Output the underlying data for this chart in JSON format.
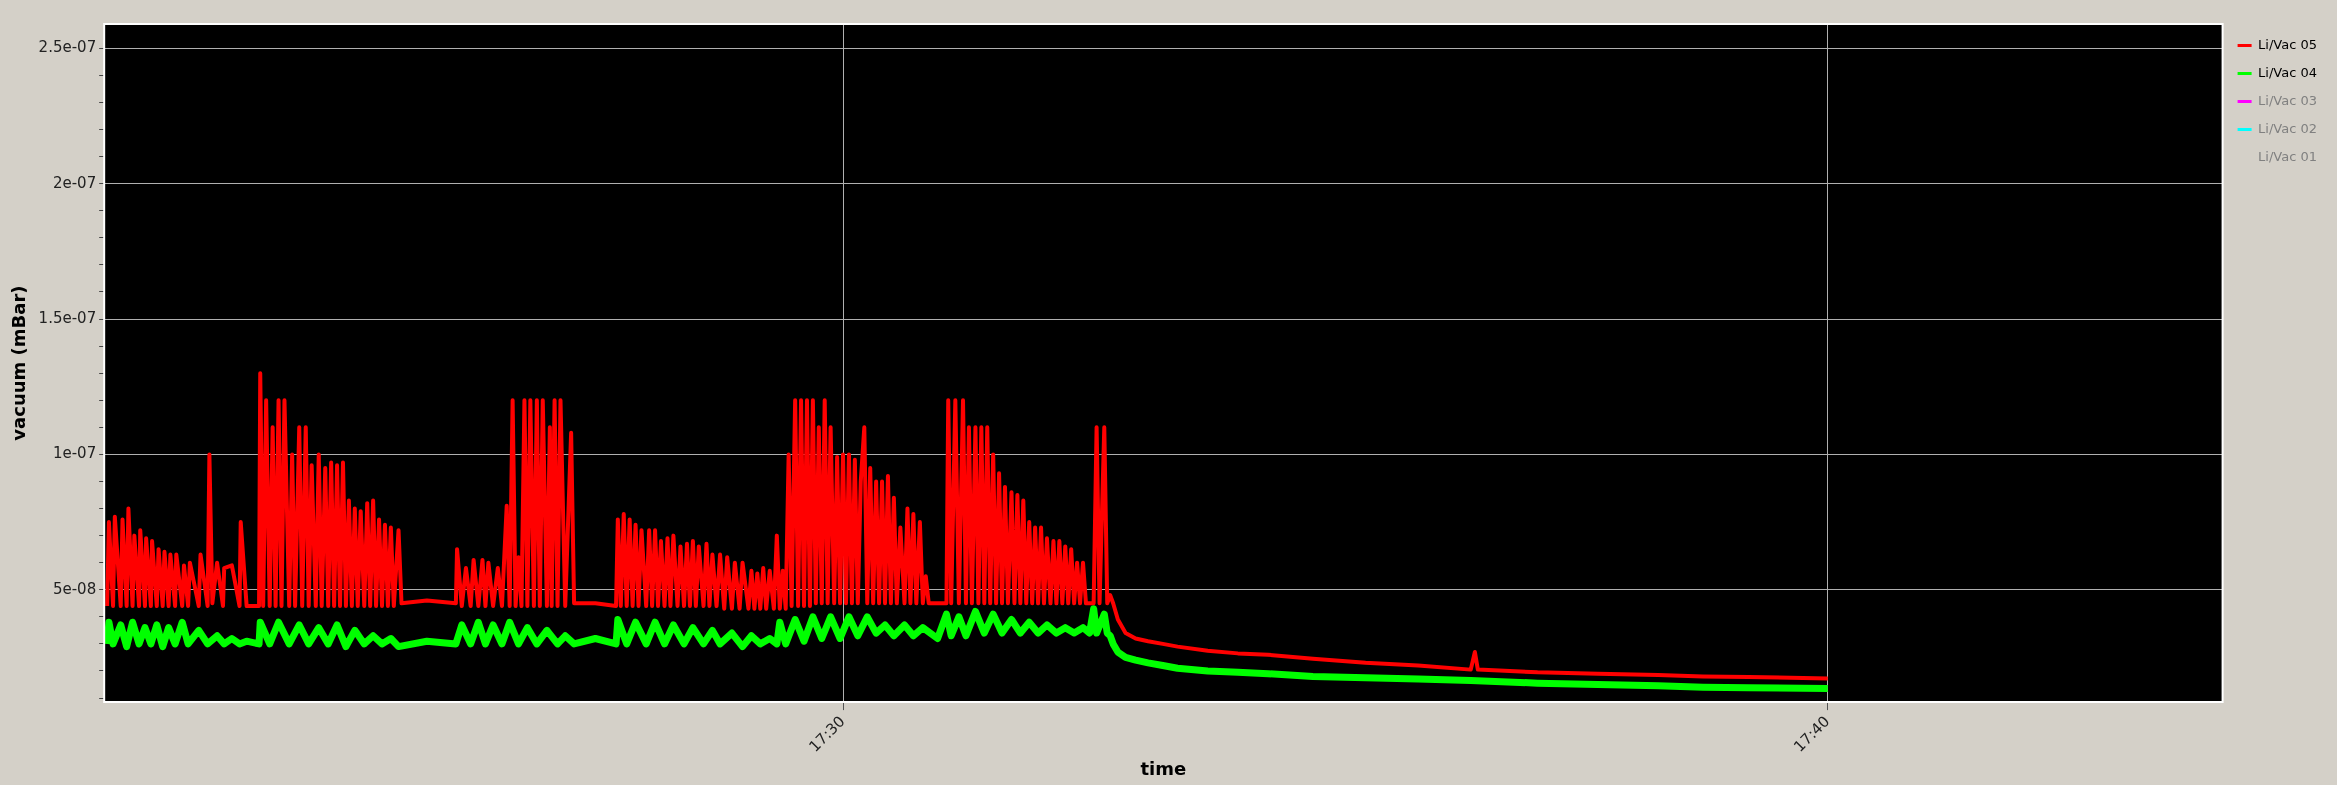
{
  "chart_data": {
    "type": "line",
    "xlabel": "time",
    "ylabel": "vacuum (mBar)",
    "xlim": [
      17.375,
      17.7334
    ],
    "xticks": [
      {
        "value": 17.5,
        "label": "17:30"
      },
      {
        "value": 17.6666,
        "label": "17:40"
      }
    ],
    "ylim": [
      8.5e-09,
      2.59e-07
    ],
    "yticks": [
      {
        "value": 1e-08,
        "label": null
      },
      {
        "value": 2e-08,
        "label": null
      },
      {
        "value": 3e-08,
        "label": null
      },
      {
        "value": 4e-08,
        "label": null
      },
      {
        "value": 5e-08,
        "label": "5e-08"
      },
      {
        "value": 6e-08,
        "label": null
      },
      {
        "value": 7e-08,
        "label": null
      },
      {
        "value": 8e-08,
        "label": null
      },
      {
        "value": 9e-08,
        "label": null
      },
      {
        "value": 1e-07,
        "label": "1e-07"
      },
      {
        "value": 1.1e-07,
        "label": null
      },
      {
        "value": 1.2e-07,
        "label": null
      },
      {
        "value": 1.3e-07,
        "label": null
      },
      {
        "value": 1.4e-07,
        "label": null
      },
      {
        "value": 1.5e-07,
        "label": "1.5e-07"
      },
      {
        "value": 1.6e-07,
        "label": null
      },
      {
        "value": 1.7e-07,
        "label": null
      },
      {
        "value": 1.8e-07,
        "label": null
      },
      {
        "value": 1.9e-07,
        "label": null
      },
      {
        "value": 2e-07,
        "label": "2e-07"
      },
      {
        "value": 2.1e-07,
        "label": null
      },
      {
        "value": 2.2e-07,
        "label": null
      },
      {
        "value": 2.3e-07,
        "label": null
      },
      {
        "value": 2.4e-07,
        "label": null
      },
      {
        "value": 2.5e-07,
        "label": "2.5e-07"
      }
    ],
    "grid": true,
    "legend": "right",
    "marker": "none",
    "line_style": "solid",
    "series": [
      {
        "name": "Li/Vac 05",
        "color": "#ff0000",
        "x": [
          17.3755,
          17.3758,
          17.3765,
          17.3768,
          17.3778,
          17.3781,
          17.3788,
          17.3791,
          17.3798,
          17.3801,
          17.3809,
          17.3811,
          17.3819,
          17.3821,
          17.3829,
          17.3831,
          17.3839,
          17.3842,
          17.3849,
          17.3852,
          17.3859,
          17.3862,
          17.387,
          17.3872,
          17.3882,
          17.3885,
          17.3892,
          17.3895,
          17.391,
          17.3913,
          17.3925,
          17.3928,
          17.3933,
          17.3941,
          17.3951,
          17.3953,
          17.3966,
          17.3979,
          17.3981,
          17.3991,
          17.4012,
          17.4014,
          17.4019,
          17.4024,
          17.403,
          17.4035,
          17.404,
          17.4045,
          17.405,
          17.4055,
          17.4063,
          17.4068,
          17.4073,
          17.408,
          17.4085,
          17.4091,
          17.4096,
          17.4101,
          17.4108,
          17.4113,
          17.4118,
          17.4124,
          17.4129,
          17.4134,
          17.4139,
          17.4144,
          17.4149,
          17.4154,
          17.4159,
          17.4164,
          17.4169,
          17.4174,
          17.4179,
          17.4184,
          17.419,
          17.4195,
          17.42,
          17.4205,
          17.421,
          17.4215,
          17.422,
          17.4225,
          17.423,
          17.4235,
          17.424,
          17.4248,
          17.4253,
          17.4296,
          17.4345,
          17.4347,
          17.4355,
          17.4362,
          17.437,
          17.4375,
          17.4383,
          17.439,
          17.4395,
          17.44,
          17.4408,
          17.4416,
          17.4423,
          17.4431,
          17.4436,
          17.4441,
          17.4446,
          17.4451,
          17.4456,
          17.4461,
          17.4466,
          17.4471,
          17.4477,
          17.4482,
          17.4487,
          17.4492,
          17.4499,
          17.4504,
          17.4507,
          17.4512,
          17.4517,
          17.4522,
          17.453,
          17.454,
          17.4545,
          17.4581,
          17.4616,
          17.4619,
          17.4624,
          17.4629,
          17.4634,
          17.4639,
          17.4644,
          17.4649,
          17.4654,
          17.4659,
          17.4667,
          17.4672,
          17.4677,
          17.4682,
          17.4687,
          17.4692,
          17.4698,
          17.4703,
          17.4708,
          17.4713,
          17.472,
          17.4725,
          17.4731,
          17.4736,
          17.4741,
          17.4746,
          17.4751,
          17.4756,
          17.4764,
          17.4769,
          17.4774,
          17.4779,
          17.4786,
          17.4792,
          17.4799,
          17.4804,
          17.4812,
          17.4817,
          17.4825,
          17.483,
          17.484,
          17.4845,
          17.485,
          17.4855,
          17.486,
          17.4865,
          17.487,
          17.4876,
          17.4883,
          17.4888,
          17.4893,
          17.4898,
          17.4903,
          17.4908,
          17.4913,
          17.4919,
          17.4924,
          17.4929,
          17.4934,
          17.4939,
          17.4944,
          17.4949,
          17.4954,
          17.4959,
          17.4964,
          17.4969,
          17.4974,
          17.4979,
          17.4985,
          17.499,
          17.4995,
          17.5,
          17.5005,
          17.501,
          17.5015,
          17.502,
          17.5025,
          17.503,
          17.5036,
          17.5041,
          17.5046,
          17.5051,
          17.5056,
          17.5061,
          17.5066,
          17.5071,
          17.5076,
          17.5081,
          17.5086,
          17.5091,
          17.5097,
          17.5104,
          17.5109,
          17.5114,
          17.5119,
          17.5124,
          17.513,
          17.5135,
          17.514,
          17.5145,
          17.516,
          17.5175,
          17.5178,
          17.5183,
          17.519,
          17.5196,
          17.5203,
          17.5208,
          17.5213,
          17.5218,
          17.5224,
          17.5229,
          17.5234,
          17.5239,
          17.5244,
          17.5249,
          17.5254,
          17.5259,
          17.5264,
          17.5269,
          17.5274,
          17.5279,
          17.5285,
          17.529,
          17.5295,
          17.53,
          17.5305,
          17.531,
          17.5315,
          17.532,
          17.5325,
          17.533,
          17.5335,
          17.534,
          17.5345,
          17.5351,
          17.5356,
          17.5361,
          17.5366,
          17.5371,
          17.5376,
          17.5381,
          17.5386,
          17.5391,
          17.5396,
          17.5401,
          17.5406,
          17.5411,
          17.5424,
          17.5429,
          17.5434,
          17.5442,
          17.5447,
          17.5452,
          17.5457,
          17.5465,
          17.5478,
          17.5495,
          17.5516,
          17.5541,
          17.5566,
          17.5617,
          17.5668,
          17.5719,
          17.5795,
          17.5884,
          17.5973,
          17.6062,
          17.6069,
          17.6074,
          17.6175,
          17.6277,
          17.6379,
          17.6455,
          17.6532,
          17.6666
        ],
        "values": [
          4.4e-08,
          7.5e-08,
          4.4e-08,
          7.7e-08,
          4.4e-08,
          7.6e-08,
          4.4e-08,
          8e-08,
          4.4e-08,
          7e-08,
          4.4e-08,
          7.2e-08,
          4.4e-08,
          6.9e-08,
          4.4e-08,
          6.8e-08,
          4.4e-08,
          6.5e-08,
          4.4e-08,
          6.4e-08,
          4.4e-08,
          6.3e-08,
          4.4e-08,
          6.3e-08,
          4.4e-08,
          5.9e-08,
          4.4e-08,
          6e-08,
          4.4e-08,
          6.3e-08,
          4.4e-08,
          1e-07,
          4.5e-08,
          6e-08,
          4.4e-08,
          5.8e-08,
          5.9e-08,
          4.4e-08,
          7.5e-08,
          4.4e-08,
          4.4e-08,
          1.3e-07,
          4.4e-08,
          1.2e-07,
          4.4e-08,
          1.1e-07,
          4.4e-08,
          1.2e-07,
          4.4e-08,
          1.2e-07,
          4.4e-08,
          1e-07,
          4.4e-08,
          1.1e-07,
          4.4e-08,
          1.1e-07,
          4.4e-08,
          9.6e-08,
          4.4e-08,
          1e-07,
          4.4e-08,
          9.5e-08,
          4.4e-08,
          9.7e-08,
          4.4e-08,
          9.6e-08,
          4.4e-08,
          9.7e-08,
          4.4e-08,
          8.3e-08,
          4.4e-08,
          8e-08,
          4.4e-08,
          7.9e-08,
          4.4e-08,
          8.2e-08,
          4.4e-08,
          8.3e-08,
          4.4e-08,
          7.6e-08,
          4.4e-08,
          7.4e-08,
          4.4e-08,
          7.3e-08,
          4.4e-08,
          7.2e-08,
          4.5e-08,
          4.6e-08,
          4.5e-08,
          6.5e-08,
          4.4e-08,
          5.8e-08,
          4.4e-08,
          6.1e-08,
          4.4e-08,
          6.1e-08,
          4.4e-08,
          6e-08,
          4.4e-08,
          5.8e-08,
          4.4e-08,
          8.1e-08,
          4.4e-08,
          1.2e-07,
          4.4e-08,
          6.2e-08,
          4.4e-08,
          1.2e-07,
          4.4e-08,
          1.2e-07,
          4.4e-08,
          1.2e-07,
          4.4e-08,
          1.2e-07,
          4.4e-08,
          1.1e-07,
          4.4e-08,
          1.2e-07,
          4.4e-08,
          1.2e-07,
          4.4e-08,
          1.08e-07,
          4.5e-08,
          4.5e-08,
          4.4e-08,
          7.6e-08,
          4.4e-08,
          7.8e-08,
          4.4e-08,
          7.6e-08,
          4.4e-08,
          7.4e-08,
          4.4e-08,
          7.2e-08,
          4.4e-08,
          7.2e-08,
          4.4e-08,
          7.2e-08,
          4.4e-08,
          6.8e-08,
          4.4e-08,
          6.9e-08,
          4.4e-08,
          7e-08,
          4.4e-08,
          6.6e-08,
          4.4e-08,
          6.7e-08,
          4.4e-08,
          6.8e-08,
          4.4e-08,
          6.6e-08,
          4.4e-08,
          6.7e-08,
          4.4e-08,
          6.3e-08,
          4.4e-08,
          6.3e-08,
          4.3e-08,
          6.2e-08,
          4.3e-08,
          6e-08,
          4.3e-08,
          6e-08,
          4.3e-08,
          5.7e-08,
          4.3e-08,
          5.6e-08,
          4.3e-08,
          5.8e-08,
          4.3e-08,
          5.7e-08,
          4.3e-08,
          7e-08,
          4.3e-08,
          5.7e-08,
          4.3e-08,
          1e-07,
          4.4e-08,
          1.2e-07,
          4.4e-08,
          1.2e-07,
          4.4e-08,
          1.2e-07,
          4.4e-08,
          1.2e-07,
          4.5e-08,
          1.1e-07,
          4.5e-08,
          1.2e-07,
          4.5e-08,
          1.1e-07,
          4.5e-08,
          9.9e-08,
          4.5e-08,
          1e-07,
          4.5e-08,
          1e-07,
          4.5e-08,
          9.8e-08,
          4.5e-08,
          9e-08,
          1.1e-07,
          4.5e-08,
          9.5e-08,
          4.5e-08,
          9e-08,
          4.5e-08,
          9e-08,
          4.5e-08,
          9.2e-08,
          4.5e-08,
          8.4e-08,
          4.5e-08,
          7.3e-08,
          4.5e-08,
          8e-08,
          4.5e-08,
          7.8e-08,
          4.5e-08,
          7.5e-08,
          4.5e-08,
          5.5e-08,
          4.5e-08,
          4.5e-08,
          4.5e-08,
          1.2e-07,
          4.5e-08,
          1.2e-07,
          4.5e-08,
          1.2e-07,
          4.5e-08,
          1.1e-07,
          4.5e-08,
          1.1e-07,
          4.5e-08,
          1.1e-07,
          4.5e-08,
          1.1e-07,
          4.5e-08,
          1e-07,
          4.5e-08,
          9.3e-08,
          4.5e-08,
          8.8e-08,
          4.5e-08,
          8.6e-08,
          4.5e-08,
          8.5e-08,
          4.5e-08,
          8.3e-08,
          4.5e-08,
          7.5e-08,
          4.5e-08,
          7.3e-08,
          4.5e-08,
          7.3e-08,
          4.5e-08,
          6.9e-08,
          4.5e-08,
          6.8e-08,
          4.5e-08,
          6.8e-08,
          4.5e-08,
          6.6e-08,
          4.5e-08,
          6.5e-08,
          4.5e-08,
          6e-08,
          4.5e-08,
          6e-08,
          4.5e-08,
          4.5e-08,
          1.1e-07,
          4.5e-08,
          1.1e-07,
          4.5e-08,
          4.8e-08,
          4.5e-08,
          3.9e-08,
          3.4e-08,
          3.2e-08,
          3.1e-08,
          3e-08,
          2.9e-08,
          2.75e-08,
          2.65e-08,
          2.6e-08,
          2.45e-08,
          2.3e-08,
          2.2e-08,
          2.05e-08,
          2.7e-08,
          2.05e-08,
          1.95e-08,
          1.9e-08,
          1.85e-08,
          1.8e-08,
          1.78e-08,
          1.72e-08
        ]
      },
      {
        "name": "Li/Vac 04",
        "color": "#00ff00",
        "x": [
          17.3755,
          17.3758,
          17.3765,
          17.3778,
          17.3788,
          17.3798,
          17.3809,
          17.3819,
          17.3829,
          17.3839,
          17.3849,
          17.3859,
          17.387,
          17.3882,
          17.3892,
          17.391,
          17.3925,
          17.3941,
          17.3953,
          17.3966,
          17.3979,
          17.3991,
          17.4012,
          17.4014,
          17.403,
          17.4045,
          17.4063,
          17.408,
          17.4096,
          17.4113,
          17.4129,
          17.4144,
          17.4159,
          17.4174,
          17.419,
          17.4205,
          17.422,
          17.4235,
          17.4248,
          17.4296,
          17.4345,
          17.4355,
          17.437,
          17.4383,
          17.4395,
          17.4408,
          17.4423,
          17.4436,
          17.4451,
          17.4466,
          17.4482,
          17.4499,
          17.4517,
          17.453,
          17.4545,
          17.4581,
          17.4616,
          17.4619,
          17.4634,
          17.4649,
          17.4667,
          17.4682,
          17.4698,
          17.4713,
          17.4731,
          17.4746,
          17.4764,
          17.4779,
          17.4792,
          17.4812,
          17.483,
          17.4845,
          17.486,
          17.4876,
          17.4888,
          17.4893,
          17.4903,
          17.4919,
          17.4934,
          17.4949,
          17.4964,
          17.4979,
          17.4995,
          17.501,
          17.5025,
          17.5041,
          17.5056,
          17.5071,
          17.5086,
          17.5104,
          17.5119,
          17.5135,
          17.516,
          17.5175,
          17.5183,
          17.5196,
          17.5208,
          17.5224,
          17.5239,
          17.5254,
          17.5269,
          17.5285,
          17.53,
          17.5315,
          17.533,
          17.5345,
          17.5361,
          17.5376,
          17.5391,
          17.5406,
          17.5417,
          17.5424,
          17.5429,
          17.5442,
          17.5447,
          17.5452,
          17.5457,
          17.5465,
          17.5478,
          17.5495,
          17.5516,
          17.5541,
          17.5566,
          17.5617,
          17.5668,
          17.5719,
          17.5795,
          17.5884,
          17.5973,
          17.6062,
          17.6175,
          17.6277,
          17.6379,
          17.6455,
          17.6532,
          17.6666
        ],
        "values": [
          3e-08,
          3.8e-08,
          3e-08,
          3.7e-08,
          2.9e-08,
          3.8e-08,
          3e-08,
          3.6e-08,
          3e-08,
          3.7e-08,
          2.9e-08,
          3.6e-08,
          3e-08,
          3.8e-08,
          3e-08,
          3.5e-08,
          3e-08,
          3.3e-08,
          3e-08,
          3.2e-08,
          3e-08,
          3.1e-08,
          3e-08,
          3.8e-08,
          3e-08,
          3.8e-08,
          3e-08,
          3.7e-08,
          3e-08,
          3.6e-08,
          3e-08,
          3.7e-08,
          2.9e-08,
          3.5e-08,
          3e-08,
          3.3e-08,
          3e-08,
          3.2e-08,
          2.9e-08,
          3.1e-08,
          3e-08,
          3.7e-08,
          3e-08,
          3.8e-08,
          3e-08,
          3.7e-08,
          3e-08,
          3.8e-08,
          3e-08,
          3.6e-08,
          3e-08,
          3.5e-08,
          3e-08,
          3.3e-08,
          3e-08,
          3.2e-08,
          3e-08,
          3.9e-08,
          3e-08,
          3.8e-08,
          3e-08,
          3.8e-08,
          3e-08,
          3.7e-08,
          3e-08,
          3.6e-08,
          3e-08,
          3.5e-08,
          3e-08,
          3.4e-08,
          2.9e-08,
          3.3e-08,
          3e-08,
          3.2e-08,
          3e-08,
          3.8e-08,
          3e-08,
          3.9e-08,
          3.1e-08,
          4e-08,
          3.2e-08,
          4e-08,
          3.2e-08,
          4e-08,
          3.3e-08,
          4e-08,
          3.4e-08,
          3.7e-08,
          3.3e-08,
          3.7e-08,
          3.3e-08,
          3.6e-08,
          3.2e-08,
          4.1e-08,
          3.3e-08,
          4e-08,
          3.3e-08,
          4.2e-08,
          3.4e-08,
          4.1e-08,
          3.4e-08,
          3.9e-08,
          3.4e-08,
          3.8e-08,
          3.4e-08,
          3.7e-08,
          3.4e-08,
          3.6e-08,
          3.4e-08,
          3.6e-08,
          3.4e-08,
          4.3e-08,
          3.4e-08,
          4.1e-08,
          3.4e-08,
          3.3e-08,
          3e-08,
          2.7e-08,
          2.5e-08,
          2.4e-08,
          2.3e-08,
          2.2e-08,
          2.1e-08,
          2e-08,
          1.95e-08,
          1.9e-08,
          1.8e-08,
          1.75e-08,
          1.7e-08,
          1.65e-08,
          1.55e-08,
          1.5e-08,
          1.45e-08,
          1.4e-08,
          1.38e-08,
          1.35e-08
        ]
      },
      {
        "name": "Li/Vac 03",
        "color": "#ff00ff"
      },
      {
        "name": "Li/Vac 02",
        "color": "#00ffff"
      },
      {
        "name": "Li/Vac 01"
      }
    ]
  }
}
